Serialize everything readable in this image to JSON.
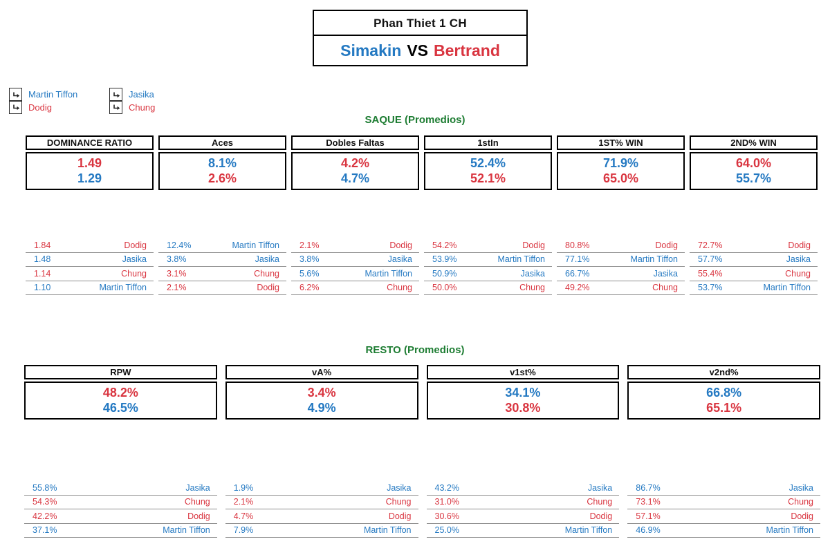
{
  "colors": {
    "blue": "#2479C2",
    "red": "#D93540",
    "green": "#1E7D33"
  },
  "header": {
    "tournament": "Phan Thiet 1 CH",
    "player_blue": "Simakin",
    "vs": "VS",
    "player_red": "Bertrand"
  },
  "legend": {
    "icon": "bent-arrow-icon",
    "groups": [
      {
        "items": [
          {
            "name": "Martin Tiffon",
            "color": "blue"
          },
          {
            "name": "Dodig",
            "color": "red"
          }
        ]
      },
      {
        "items": [
          {
            "name": "Jasika",
            "color": "blue"
          },
          {
            "name": "Chung",
            "color": "red"
          }
        ]
      }
    ]
  },
  "saque": {
    "title": "SAQUE (Promedios)",
    "stats": [
      {
        "label": "DOMINANCE RATIO",
        "values": [
          {
            "text": "1.49",
            "color": "red"
          },
          {
            "text": "1.29",
            "color": "blue"
          }
        ]
      },
      {
        "label": "Aces",
        "values": [
          {
            "text": "8.1%",
            "color": "blue"
          },
          {
            "text": "2.6%",
            "color": "red"
          }
        ]
      },
      {
        "label": "Dobles Faltas",
        "values": [
          {
            "text": "4.2%",
            "color": "red"
          },
          {
            "text": "4.7%",
            "color": "blue"
          }
        ]
      },
      {
        "label": "1stIn",
        "values": [
          {
            "text": "52.4%",
            "color": "blue"
          },
          {
            "text": "52.1%",
            "color": "red"
          }
        ]
      },
      {
        "label": "1ST% WIN",
        "values": [
          {
            "text": "71.9%",
            "color": "blue"
          },
          {
            "text": "65.0%",
            "color": "red"
          }
        ]
      },
      {
        "label": "2ND% WIN",
        "values": [
          {
            "text": "64.0%",
            "color": "red"
          },
          {
            "text": "55.7%",
            "color": "blue"
          }
        ]
      }
    ],
    "rankings": [
      [
        {
          "value": "1.84",
          "player": "Dodig",
          "color": "red"
        },
        {
          "value": "1.48",
          "player": "Jasika",
          "color": "blue"
        },
        {
          "value": "1.14",
          "player": "Chung",
          "color": "red"
        },
        {
          "value": "1.10",
          "player": "Martin Tiffon",
          "color": "blue"
        }
      ],
      [
        {
          "value": "12.4%",
          "player": "Martin Tiffon",
          "color": "blue"
        },
        {
          "value": "3.8%",
          "player": "Jasika",
          "color": "blue"
        },
        {
          "value": "3.1%",
          "player": "Chung",
          "color": "red"
        },
        {
          "value": "2.1%",
          "player": "Dodig",
          "color": "red"
        }
      ],
      [
        {
          "value": "2.1%",
          "player": "Dodig",
          "color": "red"
        },
        {
          "value": "3.8%",
          "player": "Jasika",
          "color": "blue"
        },
        {
          "value": "5.6%",
          "player": "Martin Tiffon",
          "color": "blue"
        },
        {
          "value": "6.2%",
          "player": "Chung",
          "color": "red"
        }
      ],
      [
        {
          "value": "54.2%",
          "player": "Dodig",
          "color": "red"
        },
        {
          "value": "53.9%",
          "player": "Martin Tiffon",
          "color": "blue"
        },
        {
          "value": "50.9%",
          "player": "Jasika",
          "color": "blue"
        },
        {
          "value": "50.0%",
          "player": "Chung",
          "color": "red"
        }
      ],
      [
        {
          "value": "80.8%",
          "player": "Dodig",
          "color": "red"
        },
        {
          "value": "77.1%",
          "player": "Martin Tiffon",
          "color": "blue"
        },
        {
          "value": "66.7%",
          "player": "Jasika",
          "color": "blue"
        },
        {
          "value": "49.2%",
          "player": "Chung",
          "color": "red"
        }
      ],
      [
        {
          "value": "72.7%",
          "player": "Dodig",
          "color": "red"
        },
        {
          "value": "57.7%",
          "player": "Jasika",
          "color": "blue"
        },
        {
          "value": "55.4%",
          "player": "Chung",
          "color": "red"
        },
        {
          "value": "53.7%",
          "player": "Martin Tiffon",
          "color": "blue"
        }
      ]
    ]
  },
  "resto": {
    "title": "RESTO (Promedios)",
    "stats": [
      {
        "label": "RPW",
        "values": [
          {
            "text": "48.2%",
            "color": "red"
          },
          {
            "text": "46.5%",
            "color": "blue"
          }
        ]
      },
      {
        "label": "vA%",
        "values": [
          {
            "text": "3.4%",
            "color": "red"
          },
          {
            "text": "4.9%",
            "color": "blue"
          }
        ]
      },
      {
        "label": "v1st%",
        "values": [
          {
            "text": "34.1%",
            "color": "blue"
          },
          {
            "text": "30.8%",
            "color": "red"
          }
        ]
      },
      {
        "label": "v2nd%",
        "values": [
          {
            "text": "66.8%",
            "color": "blue"
          },
          {
            "text": "65.1%",
            "color": "red"
          }
        ]
      }
    ],
    "rankings": [
      [
        {
          "value": "55.8%",
          "player": "Jasika",
          "color": "blue"
        },
        {
          "value": "54.3%",
          "player": "Chung",
          "color": "red"
        },
        {
          "value": "42.2%",
          "player": "Dodig",
          "color": "red"
        },
        {
          "value": "37.1%",
          "player": "Martin Tiffon",
          "color": "blue"
        }
      ],
      [
        {
          "value": "1.9%",
          "player": "Jasika",
          "color": "blue"
        },
        {
          "value": "2.1%",
          "player": "Chung",
          "color": "red"
        },
        {
          "value": "4.7%",
          "player": "Dodig",
          "color": "red"
        },
        {
          "value": "7.9%",
          "player": "Martin Tiffon",
          "color": "blue"
        }
      ],
      [
        {
          "value": "43.2%",
          "player": "Jasika",
          "color": "blue"
        },
        {
          "value": "31.0%",
          "player": "Chung",
          "color": "red"
        },
        {
          "value": "30.6%",
          "player": "Dodig",
          "color": "red"
        },
        {
          "value": "25.0%",
          "player": "Martin Tiffon",
          "color": "blue"
        }
      ],
      [
        {
          "value": "86.7%",
          "player": "Jasika",
          "color": "blue"
        },
        {
          "value": "73.1%",
          "player": "Chung",
          "color": "red"
        },
        {
          "value": "57.1%",
          "player": "Dodig",
          "color": "red"
        },
        {
          "value": "46.9%",
          "player": "Martin Tiffon",
          "color": "blue"
        }
      ]
    ]
  }
}
